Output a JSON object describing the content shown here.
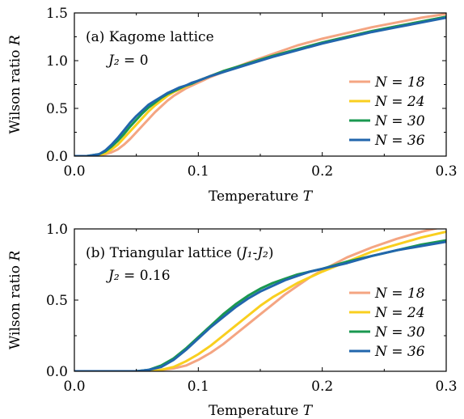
{
  "chart_data": [
    {
      "type": "line",
      "panel": "a",
      "annotation": "(a) Kagome lattice",
      "annotation_sub": "J₂ = 0",
      "xlabel": "Temperature T",
      "ylabel": "Wilson ratio R",
      "xlim": [
        0.0,
        0.3
      ],
      "ylim": [
        0.0,
        1.5
      ],
      "xticks": [
        "0.0",
        "0.1",
        "0.2",
        "0.3"
      ],
      "yticks": [
        "0.0",
        "0.5",
        "1.0",
        "1.5"
      ],
      "xtick_values": [
        0.0,
        0.1,
        0.2,
        0.3
      ],
      "ytick_values": [
        0.0,
        0.5,
        1.0,
        1.5
      ],
      "legend_placement": "lower-right",
      "x": [
        0.0,
        0.01,
        0.02,
        0.025,
        0.03,
        0.035,
        0.04,
        0.045,
        0.05,
        0.055,
        0.06,
        0.065,
        0.07,
        0.075,
        0.08,
        0.085,
        0.09,
        0.095,
        0.1,
        0.11,
        0.12,
        0.14,
        0.16,
        0.18,
        0.2,
        0.22,
        0.24,
        0.26,
        0.28,
        0.3
      ],
      "series": [
        {
          "name": "N = 18",
          "color": "#f4a582",
          "values": [
            0.0,
            0.0,
            0.01,
            0.02,
            0.04,
            0.07,
            0.12,
            0.18,
            0.25,
            0.32,
            0.39,
            0.46,
            0.52,
            0.58,
            0.63,
            0.67,
            0.71,
            0.74,
            0.77,
            0.83,
            0.88,
            0.98,
            1.07,
            1.16,
            1.23,
            1.29,
            1.35,
            1.4,
            1.45,
            1.49
          ]
        },
        {
          "name": "N = 24",
          "color": "#f9cf1f",
          "values": [
            0.0,
            0.0,
            0.01,
            0.03,
            0.07,
            0.12,
            0.19,
            0.26,
            0.33,
            0.4,
            0.47,
            0.53,
            0.58,
            0.63,
            0.67,
            0.7,
            0.73,
            0.76,
            0.79,
            0.84,
            0.89,
            0.97,
            1.05,
            1.12,
            1.19,
            1.25,
            1.31,
            1.36,
            1.41,
            1.46
          ]
        },
        {
          "name": "N = 30",
          "color": "#1a9850",
          "values": [
            0.0,
            0.0,
            0.02,
            0.05,
            0.1,
            0.16,
            0.23,
            0.31,
            0.38,
            0.45,
            0.51,
            0.56,
            0.61,
            0.65,
            0.68,
            0.71,
            0.74,
            0.76,
            0.79,
            0.84,
            0.89,
            0.97,
            1.05,
            1.12,
            1.19,
            1.25,
            1.31,
            1.36,
            1.41,
            1.46
          ]
        },
        {
          "name": "N = 36",
          "color": "#2166ac",
          "values": [
            0.0,
            0.0,
            0.02,
            0.06,
            0.12,
            0.19,
            0.27,
            0.35,
            0.42,
            0.48,
            0.54,
            0.58,
            0.62,
            0.66,
            0.69,
            0.72,
            0.74,
            0.77,
            0.79,
            0.84,
            0.88,
            0.96,
            1.04,
            1.11,
            1.18,
            1.24,
            1.3,
            1.35,
            1.4,
            1.45
          ]
        }
      ]
    },
    {
      "type": "line",
      "panel": "b",
      "annotation": "(b) Triangular lattice (J₁-J₂)",
      "annotation_sub": "J₂ = 0.16",
      "xlabel": "Temperature T",
      "ylabel": "Wilson ratio R",
      "xlim": [
        0.0,
        0.3
      ],
      "ylim": [
        0.0,
        1.0
      ],
      "xticks": [
        "0.0",
        "0.1",
        "0.2",
        "0.3"
      ],
      "yticks": [
        "0.0",
        "0.5",
        "1.0"
      ],
      "xtick_values": [
        0.0,
        0.1,
        0.2,
        0.3
      ],
      "ytick_values": [
        0.0,
        0.5,
        1.0
      ],
      "legend_placement": "lower-right",
      "x": [
        0.0,
        0.03,
        0.05,
        0.06,
        0.07,
        0.08,
        0.09,
        0.1,
        0.11,
        0.12,
        0.13,
        0.14,
        0.15,
        0.16,
        0.17,
        0.18,
        0.19,
        0.2,
        0.22,
        0.24,
        0.26,
        0.28,
        0.3
      ],
      "series": [
        {
          "name": "N = 18",
          "color": "#f4a582",
          "values": [
            0.0,
            0.0,
            0.0,
            0.0,
            0.01,
            0.02,
            0.04,
            0.08,
            0.13,
            0.19,
            0.26,
            0.33,
            0.4,
            0.47,
            0.54,
            0.6,
            0.66,
            0.71,
            0.8,
            0.87,
            0.93,
            0.98,
            1.02
          ]
        },
        {
          "name": "N = 24",
          "color": "#f9cf1f",
          "values": [
            0.0,
            0.0,
            0.0,
            0.0,
            0.01,
            0.03,
            0.07,
            0.12,
            0.18,
            0.25,
            0.32,
            0.39,
            0.46,
            0.52,
            0.57,
            0.62,
            0.66,
            0.7,
            0.77,
            0.84,
            0.89,
            0.94,
            0.98
          ]
        },
        {
          "name": "N = 30",
          "color": "#1a9850",
          "values": [
            0.0,
            0.0,
            0.0,
            0.01,
            0.04,
            0.09,
            0.16,
            0.24,
            0.32,
            0.4,
            0.47,
            0.53,
            0.58,
            0.62,
            0.65,
            0.68,
            0.7,
            0.72,
            0.77,
            0.81,
            0.85,
            0.89,
            0.92
          ]
        },
        {
          "name": "N = 36",
          "color": "#2166ac",
          "values": [
            0.0,
            0.0,
            0.0,
            0.01,
            0.03,
            0.08,
            0.15,
            0.23,
            0.31,
            0.38,
            0.45,
            0.51,
            0.56,
            0.6,
            0.64,
            0.67,
            0.7,
            0.72,
            0.76,
            0.81,
            0.85,
            0.88,
            0.91
          ]
        }
      ]
    }
  ]
}
